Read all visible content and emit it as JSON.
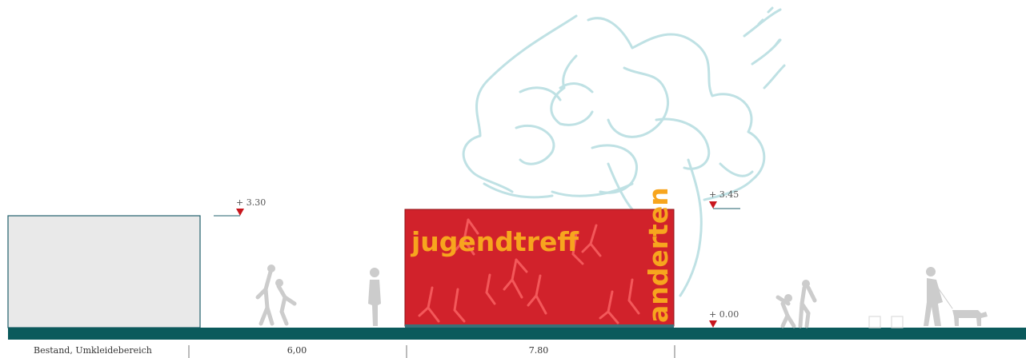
{
  "elevation": {
    "existing_building_label": "Bestand, Umkleidebereich",
    "levels": {
      "existing_roof": "+ 3.30",
      "new_roof": "+ 3.45",
      "ground": "+ 0.00"
    },
    "dimensions": {
      "gap": "6,00",
      "building_length": "7.80"
    },
    "facade": {
      "title": "jugendtreff",
      "vertical_text": "anderten"
    }
  },
  "colors": {
    "ground": "#0b5a5c",
    "facade_red": "#d1222b",
    "facade_text": "#f7a51e",
    "existing_fill": "#e9e9e9",
    "existing_outline": "#1f5f6b",
    "level_marker": "#c8161d",
    "tree_sketch": "#bfe1e4",
    "people": "#cccccc"
  }
}
